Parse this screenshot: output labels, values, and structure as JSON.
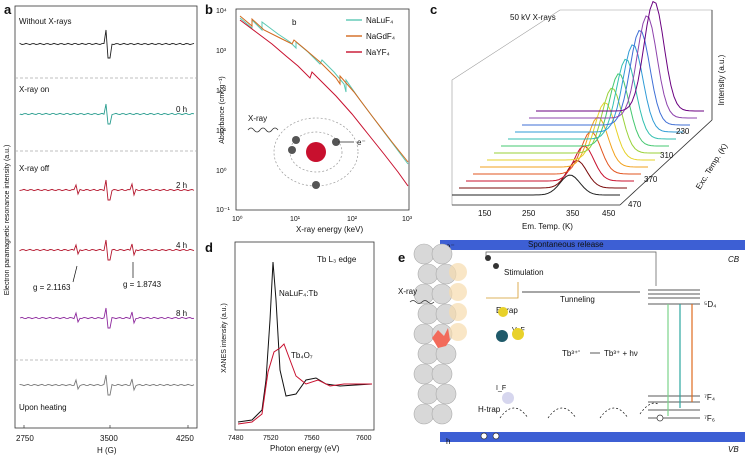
{
  "panel_a": {
    "label": "a",
    "ylabel": "Electron paramagnetic resonance intensity (a.u.)",
    "xlabel": "H (G)",
    "xticks": [
      "2750",
      "3500",
      "4250"
    ],
    "sections": [
      "Without X-rays",
      "X-ray on",
      "X-ray off",
      "Upon heating"
    ],
    "traces": [
      {
        "label": "",
        "color": "#222222"
      },
      {
        "label": "0 h",
        "color": "#2a9d8f"
      },
      {
        "label": "2 h",
        "color": "#b5172e"
      },
      {
        "label": "4 h",
        "color": "#b5172e"
      },
      {
        "label": "8 h",
        "color": "#8e2a9e"
      },
      {
        "label": "",
        "color": "#7a7a7a"
      }
    ],
    "annotations": [
      "g = 2.1163",
      "g = 1.8743"
    ]
  },
  "panel_b": {
    "label": "b",
    "ylabel": "Absorbance (cm² g⁻¹)",
    "xlabel": "X-ray energy (keV)",
    "xticks": [
      "10⁰",
      "10¹",
      "10²",
      "10³"
    ],
    "yticks": [
      "10⁴",
      "10³",
      "10²",
      "10¹",
      "10⁰",
      "10⁻¹"
    ],
    "legend": [
      {
        "name": "NaLuF₄",
        "color": "#5bc8b4"
      },
      {
        "name": "NaGdF₄",
        "color": "#d2691e"
      },
      {
        "name": "NaYF₄",
        "color": "#c8102e"
      }
    ],
    "inset_label": "b",
    "xray_label": "X-ray",
    "electron_label": "e⁻"
  },
  "panel_c": {
    "label": "c",
    "title": "50 kV X-rays",
    "xlabel": "Em. Temp. (K)",
    "xticks": [
      "150",
      "250",
      "350",
      "450"
    ],
    "ylabel": "Intensity (a.u.)",
    "zlabel": "Exc. Temp. (K)",
    "zticks": [
      "230",
      "310",
      "370",
      "470"
    ]
  },
  "panel_d": {
    "label": "d",
    "title": "Tb L₃ edge",
    "ylabel": "XANES intensity (a.u.)",
    "xlabel": "Photon energy (eV)",
    "xticks": [
      "7480",
      "7520",
      "7560",
      "7600"
    ],
    "series": [
      {
        "name": "NaLuF₄:Tb",
        "color": "#111111"
      },
      {
        "name": "Tb₄O₇",
        "color": "#c8102e"
      }
    ]
  },
  "panel_e": {
    "label": "e",
    "cb": "CB",
    "vb": "VB",
    "e_minus": "e⁻",
    "h_plus": "h",
    "spontaneous": "Spontaneous release",
    "stimulation": "Stimulation",
    "tunneling": "Tunneling",
    "xray": "X-ray",
    "etrap": "E-trap",
    "htrap": "H-trap",
    "vf": "V_F",
    "if": "I_F",
    "reaction_left": "Tb³⁺ʹ",
    "reaction_right": "Tb³⁺ + hν",
    "level_5d4": "⁵D₄",
    "level_7f4": "⁷F₄",
    "level_7f6": "⁷F₆"
  },
  "colors": {
    "band": "#3d5fd4",
    "spectrum": [
      "#6a0080",
      "#8e44ad",
      "#3f6fd6",
      "#2f9bd6",
      "#31bfb0",
      "#45c870",
      "#9ad23a",
      "#e6d22a",
      "#f2a21e",
      "#e2551f",
      "#c8102e",
      "#7a0a0a",
      "#222222"
    ]
  }
}
